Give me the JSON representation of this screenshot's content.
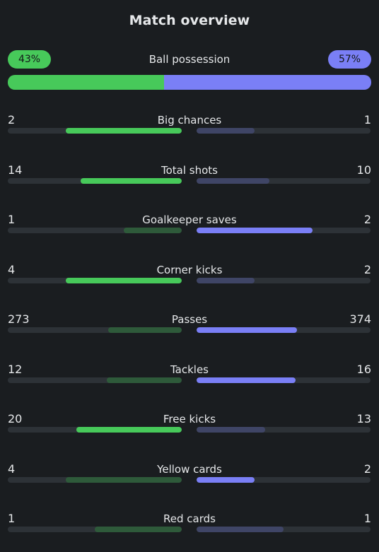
{
  "title": "Match overview",
  "colors": {
    "home_strong": "#47c95a",
    "home_dim": "#2e5a3a",
    "away_strong": "#7a7ff6",
    "away_dim": "#3f4566",
    "track": "#2d3237"
  },
  "possession": {
    "label": "Ball possession",
    "home_text": "43%",
    "away_text": "57%",
    "home_value": 43,
    "away_value": 57
  },
  "stats": [
    {
      "label": "Big chances",
      "home": "2",
      "away": "1",
      "home_frac": 0.667,
      "away_frac": 0.333,
      "leader": "home"
    },
    {
      "label": "Total shots",
      "home": "14",
      "away": "10",
      "home_frac": 0.583,
      "away_frac": 0.417,
      "leader": "home"
    },
    {
      "label": "Goalkeeper saves",
      "home": "1",
      "away": "2",
      "home_frac": 0.333,
      "away_frac": 0.667,
      "leader": "away"
    },
    {
      "label": "Corner kicks",
      "home": "4",
      "away": "2",
      "home_frac": 0.667,
      "away_frac": 0.333,
      "leader": "home"
    },
    {
      "label": "Passes",
      "home": "273",
      "away": "374",
      "home_frac": 0.422,
      "away_frac": 0.578,
      "leader": "away"
    },
    {
      "label": "Tackles",
      "home": "12",
      "away": "16",
      "home_frac": 0.429,
      "away_frac": 0.571,
      "leader": "away"
    },
    {
      "label": "Free kicks",
      "home": "20",
      "away": "13",
      "home_frac": 0.606,
      "away_frac": 0.394,
      "leader": "home"
    },
    {
      "label": "Yellow cards",
      "home": "4",
      "away": "2",
      "home_frac": 0.667,
      "away_frac": 0.333,
      "leader": "away"
    },
    {
      "label": "Red cards",
      "home": "1",
      "away": "1",
      "home_frac": 0.5,
      "away_frac": 0.5,
      "leader": "none"
    }
  ]
}
